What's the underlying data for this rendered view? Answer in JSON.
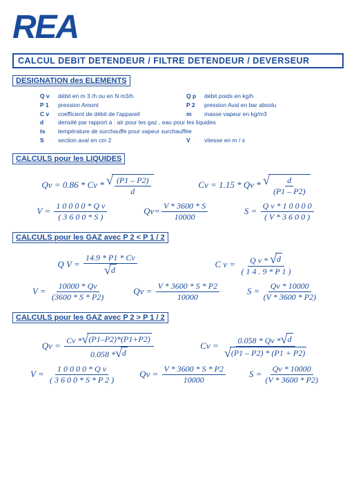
{
  "brand": "REA",
  "main_title": "CALCUL  DEBIT  DETENDEUR / FILTRE  DETENDEUR / DEVERSEUR",
  "sections": {
    "designation": "DESIGNATION  des  ELEMENTS",
    "liquides": "CALCULS  pour  les  LIQUIDES",
    "gaz1": "CALCULS      pour    les    GAZ  avec   P 2 < P 1 / 2",
    "gaz2": "CALCULS      pour    les     GAZ  avec   P 2 > P 1 / 2"
  },
  "defs": [
    {
      "sym": "Q v",
      "txt": "débit en  m 3 /h  ou en   N m3/h",
      "sym2": "Q p",
      "txt2": "débit poids en  kg/h"
    },
    {
      "sym": "P 1",
      "txt": "pression Amont",
      "sym2": "P 2",
      "txt2": "pression  Aval en  bar absolu"
    },
    {
      "sym": "C v",
      "txt": "coefficient de débit de l'appareil",
      "sym2": "m",
      "txt2": "masse vapeur en  kg/m3"
    },
    {
      "sym": "d",
      "txt": "densité par rapport à :  air pour les gaz  ,     eau  pour les liquides",
      "sym2": "",
      "txt2": ""
    },
    {
      "sym": "ts",
      "txt": "température de surchauffe pour vapeur surchauffée",
      "sym2": "",
      "txt2": ""
    },
    {
      "sym": "S",
      "txt": "section  aval  en  cm 2",
      "sym2": "V",
      "txt2": "vitesse  en  m / s"
    }
  ],
  "formulas": {
    "liq": {
      "f1": {
        "lhs": "Qv =",
        "pre": "0.86 * Cv *",
        "rad_num": "(P1 – P2)",
        "rad_den": "d"
      },
      "f2": {
        "lhs": "Cv =",
        "pre": "1.15 * Qv *",
        "rad_num": "d",
        "rad_den": "(P1 – P2)"
      },
      "f3": {
        "lhs": "V =",
        "num": "1 0 0 0 0  *  Q v",
        "den": "( 3 6 0 0  *  S )"
      },
      "f4": {
        "lhs": "Qv=",
        "num": "V * 3600 * S",
        "den": "10000"
      },
      "f5": {
        "lhs": "S =",
        "num": "Q v * 1 0 0 0 0",
        "den": "( V  *  3 6 0 0 )"
      }
    },
    "gaz1": {
      "f1": {
        "lhs": "Q V =",
        "num": "14.9 * P1 * Cv",
        "den_rad": "d"
      },
      "f2": {
        "lhs": "C v  =",
        "num_a": "Q v  *",
        "num_rad": "d",
        "den": "( 1 4 . 9  *  P 1 )"
      },
      "f3": {
        "lhs": "V =",
        "num": "10000 * Qv",
        "den": "(3600 * S * P2)"
      },
      "f4": {
        "lhs": "Qv =",
        "num": "V * 3600 * S * P2",
        "den": "10000"
      },
      "f5": {
        "lhs": "S =",
        "num": "Qv * 10000",
        "den": "(V * 3600 * P2)"
      }
    },
    "gaz2": {
      "f1": {
        "lhs": "Qv =",
        "num_a": "Cv *",
        "num_rad": "(P1–P2)*(P1+P2)",
        "den_a": "0.058 *",
        "den_rad": "d"
      },
      "f2": {
        "lhs": "Cv =",
        "num_a": "0.058 * Qv *",
        "num_rad": "d",
        "den_rad": "(P1 – P2) * (P1 + P2)"
      },
      "f3": {
        "lhs": "V =",
        "num": "1 0 0 0 0 * Q v",
        "den": "( 3 6 0 0 * S * P 2 )"
      },
      "f4": {
        "lhs": "Qv =",
        "num": "V * 3600 * S * P2",
        "den": "10000"
      },
      "f5": {
        "lhs": "S =",
        "num": "Qv * 10000",
        "den": "(V * 3600 * P2)"
      }
    }
  },
  "colors": {
    "ink": "#1a4b9b",
    "bg": "#ffffff"
  }
}
